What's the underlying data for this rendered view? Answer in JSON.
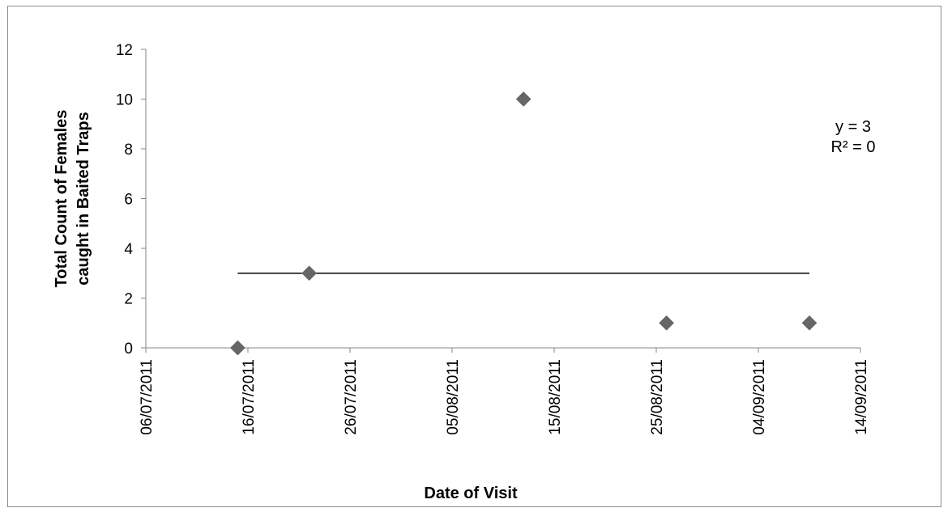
{
  "chart_data": {
    "type": "scatter",
    "xlabel": "Date of Visit",
    "ylabel_lines": [
      "Total Count of Females",
      "caught in Baited Traps"
    ],
    "x_ticks": [
      "06/07/2011",
      "16/07/2011",
      "26/07/2011",
      "05/08/2011",
      "15/08/2011",
      "25/08/2011",
      "04/09/2011",
      "14/09/2011"
    ],
    "xlim": [
      "06/07/2011",
      "14/09/2011"
    ],
    "ylim": [
      0,
      12
    ],
    "y_ticks": [
      0,
      2,
      4,
      6,
      8,
      10,
      12
    ],
    "grid": false,
    "points": [
      {
        "x": "15/07/2011",
        "y": 0
      },
      {
        "x": "22/07/2011",
        "y": 3
      },
      {
        "x": "12/08/2011",
        "y": 10
      },
      {
        "x": "26/08/2011",
        "y": 1
      },
      {
        "x": "09/09/2011",
        "y": 1
      }
    ],
    "trendline": {
      "equation": "y = 3",
      "r_squared": "R² = 0",
      "y": 3,
      "x_start": "15/07/2011",
      "x_end": "09/09/2011"
    },
    "colors": {
      "marker": "#666666",
      "trendline": "#000000",
      "axis": "#868686"
    }
  }
}
